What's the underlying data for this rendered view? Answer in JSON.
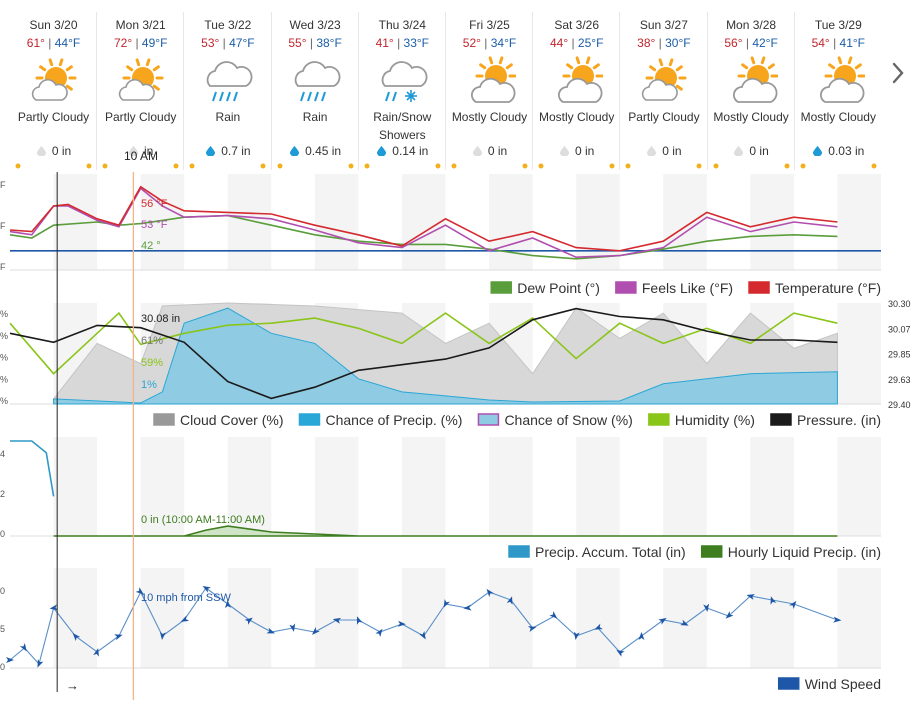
{
  "days": [
    {
      "name": "Sun 3/20",
      "hi": "61°",
      "lo": "44°F",
      "cond": "Partly Cloudy",
      "icon": "partly-cloudy-icon",
      "precip": "0 in"
    },
    {
      "name": "Mon 3/21",
      "hi": "72°",
      "lo": "49°F",
      "cond": "Partly Cloudy",
      "icon": "partly-cloudy-icon",
      "precip": "in"
    },
    {
      "name": "Tue 3/22",
      "hi": "53°",
      "lo": "47°F",
      "cond": "Rain",
      "icon": "rain-icon",
      "precip": "0.7 in"
    },
    {
      "name": "Wed 3/23",
      "hi": "55°",
      "lo": "38°F",
      "cond": "Rain",
      "icon": "rain-icon",
      "precip": "0.45 in"
    },
    {
      "name": "Thu 3/24",
      "hi": "41°",
      "lo": "33°F",
      "cond": "Rain/Snow Showers",
      "icon": "rain-snow-icon",
      "precip": "0.14 in"
    },
    {
      "name": "Fri 3/25",
      "hi": "52°",
      "lo": "34°F",
      "cond": "Mostly Cloudy",
      "icon": "mostly-cloudy-icon",
      "precip": "0 in"
    },
    {
      "name": "Sat 3/26",
      "hi": "44°",
      "lo": "25°F",
      "cond": "Mostly Cloudy",
      "icon": "mostly-cloudy-icon",
      "precip": "0 in"
    },
    {
      "name": "Sun 3/27",
      "hi": "38°",
      "lo": "30°F",
      "cond": "Partly Cloudy",
      "icon": "partly-cloudy-icon",
      "precip": "0 in"
    },
    {
      "name": "Mon 3/28",
      "hi": "56°",
      "lo": "42°F",
      "cond": "Mostly Cloudy",
      "icon": "mostly-cloudy-icon",
      "precip": "0 in"
    },
    {
      "name": "Tue 3/29",
      "hi": "54°",
      "lo": "41°F",
      "cond": "Mostly Cloudy",
      "icon": "mostly-cloudy-icon",
      "precip": "0.03 in"
    }
  ],
  "hover_time": "10 AM",
  "colors": {
    "temp": "#d42a2f",
    "feels": "#b04fb0",
    "dew": "#5a9e3c",
    "freeze": "#1f57a8",
    "cloud": "#c8c8c8",
    "precip": "#2aa7d6",
    "humidity": "#8ac51a",
    "pressure": "#1a1a1a",
    "accum": "#2f98c8",
    "hourly": "#3e7d20",
    "wind": "#1f57a8",
    "cursor": "#f2b38a"
  },
  "chart_data": [
    {
      "type": "line",
      "id": "temperature",
      "x_unit": "hours from Sun 3/20 00:00",
      "series": [
        {
          "name": "Temperature (°F)",
          "color": "#d42a2f",
          "points": [
            [
              0,
              45
            ],
            [
              6,
              44
            ],
            [
              12,
              60
            ],
            [
              16,
              61
            ],
            [
              24,
              52
            ],
            [
              30,
              48
            ],
            [
              36,
              72
            ],
            [
              42,
              63
            ],
            [
              48,
              57
            ],
            [
              60,
              56
            ],
            [
              72,
              55
            ],
            [
              84,
              48
            ],
            [
              96,
              42
            ],
            [
              108,
              35
            ],
            [
              120,
              52
            ],
            [
              132,
              38
            ],
            [
              144,
              44
            ],
            [
              156,
              34
            ],
            [
              168,
              32
            ],
            [
              180,
              38
            ],
            [
              192,
              56
            ],
            [
              204,
              47
            ],
            [
              216,
              53
            ],
            [
              228,
              50
            ]
          ]
        },
        {
          "name": "Feels Like (°F)",
          "color": "#b04fb0",
          "points": [
            [
              0,
              44
            ],
            [
              6,
              42
            ],
            [
              12,
              60
            ],
            [
              16,
              60
            ],
            [
              24,
              51
            ],
            [
              30,
              47
            ],
            [
              36,
              71
            ],
            [
              42,
              60
            ],
            [
              48,
              53
            ],
            [
              60,
              54
            ],
            [
              72,
              52
            ],
            [
              84,
              45
            ],
            [
              96,
              37
            ],
            [
              108,
              34
            ],
            [
              120,
              48
            ],
            [
              132,
              32
            ],
            [
              144,
              40
            ],
            [
              156,
              28
            ],
            [
              168,
              29
            ],
            [
              180,
              34
            ],
            [
              192,
              53
            ],
            [
              204,
              44
            ],
            [
              216,
              50
            ],
            [
              228,
              47
            ]
          ]
        },
        {
          "name": "Dew Point (°)",
          "color": "#5a9e3c",
          "points": [
            [
              0,
              42
            ],
            [
              6,
              40
            ],
            [
              12,
              48
            ],
            [
              24,
              50
            ],
            [
              30,
              48
            ],
            [
              36,
              49
            ],
            [
              42,
              51
            ],
            [
              48,
              53
            ],
            [
              60,
              54
            ],
            [
              72,
              48
            ],
            [
              84,
              42
            ],
            [
              96,
              38
            ],
            [
              108,
              36
            ],
            [
              120,
              36
            ],
            [
              132,
              33
            ],
            [
              144,
              29
            ],
            [
              156,
              27
            ],
            [
              168,
              29
            ],
            [
              180,
              33
            ],
            [
              192,
              38
            ],
            [
              204,
              41
            ],
            [
              216,
              42
            ],
            [
              228,
              41
            ]
          ]
        }
      ],
      "freezing_line": 32,
      "hover_labels": [
        "56 °F",
        "53 °F",
        "42 °"
      ]
    },
    {
      "type": "area",
      "id": "sky",
      "series": [
        {
          "name": "Cloud Cover (%)",
          "color": "#c8c8c8",
          "points": [
            [
              12,
              5
            ],
            [
              24,
              60
            ],
            [
              36,
              40
            ],
            [
              42,
              97
            ],
            [
              60,
              100
            ],
            [
              84,
              97
            ],
            [
              108,
              90
            ],
            [
              120,
              60
            ],
            [
              132,
              80
            ],
            [
              144,
              30
            ],
            [
              156,
              95
            ],
            [
              168,
              65
            ],
            [
              180,
              90
            ],
            [
              192,
              40
            ],
            [
              204,
              90
            ],
            [
              216,
              55
            ],
            [
              228,
              70
            ]
          ]
        },
        {
          "name": "Chance of Precip. (%)",
          "color": "#2aa7d6",
          "points": [
            [
              12,
              5
            ],
            [
              36,
              1
            ],
            [
              42,
              12
            ],
            [
              48,
              80
            ],
            [
              60,
              95
            ],
            [
              72,
              70
            ],
            [
              84,
              60
            ],
            [
              96,
              25
            ],
            [
              108,
              12
            ],
            [
              120,
              8
            ],
            [
              132,
              4
            ],
            [
              144,
              2
            ],
            [
              168,
              3
            ],
            [
              180,
              20
            ],
            [
              192,
              25
            ],
            [
              204,
              30
            ],
            [
              228,
              32
            ]
          ]
        },
        {
          "name": "Chance of Snow (%)",
          "color": "#c77fc0",
          "points": []
        },
        {
          "name": "Humidity (%)",
          "color": "#8ac51a",
          "points": [
            [
              0,
              80
            ],
            [
              12,
              30
            ],
            [
              24,
              70
            ],
            [
              30,
              90
            ],
            [
              36,
              59
            ],
            [
              48,
              70
            ],
            [
              60,
              78
            ],
            [
              72,
              80
            ],
            [
              84,
              85
            ],
            [
              96,
              75
            ],
            [
              108,
              60
            ],
            [
              120,
              90
            ],
            [
              132,
              60
            ],
            [
              144,
              85
            ],
            [
              156,
              45
            ],
            [
              168,
              80
            ],
            [
              180,
              60
            ],
            [
              192,
              75
            ],
            [
              204,
              60
            ],
            [
              216,
              90
            ],
            [
              228,
              80
            ]
          ]
        },
        {
          "name": "Pressure. (in)",
          "color": "#1a1a1a",
          "points": [
            [
              0,
              30.03
            ],
            [
              12,
              29.95
            ],
            [
              24,
              30.1
            ],
            [
              36,
              30.08
            ],
            [
              48,
              29.95
            ],
            [
              60,
              29.6
            ],
            [
              72,
              29.45
            ],
            [
              84,
              29.55
            ],
            [
              96,
              29.7
            ],
            [
              108,
              29.75
            ],
            [
              120,
              29.8
            ],
            [
              132,
              29.9
            ],
            [
              144,
              30.15
            ],
            [
              156,
              30.25
            ],
            [
              168,
              30.18
            ],
            [
              180,
              30.15
            ],
            [
              192,
              30.05
            ],
            [
              204,
              29.97
            ],
            [
              216,
              29.97
            ],
            [
              228,
              29.95
            ]
          ]
        }
      ],
      "ylabel_right": [
        "30.30",
        "30.07",
        "29.85",
        "29.63",
        "29.40"
      ],
      "hover_labels": [
        "30.08 in",
        "61%",
        "59%",
        "1%"
      ]
    },
    {
      "type": "area",
      "id": "precip",
      "series": [
        {
          "name": "Precip. Accum. Total (in)",
          "color": "#2f98c8",
          "points": [
            [
              0,
              0.48
            ],
            [
              6,
              0.48
            ],
            [
              10,
              0.42
            ],
            [
              12,
              0.2
            ]
          ]
        },
        {
          "name": "Hourly Liquid Precip. (in)",
          "color": "#3e7d20",
          "points": [
            [
              12,
              0
            ],
            [
              48,
              0
            ],
            [
              54,
              0.03
            ],
            [
              60,
              0.05
            ],
            [
              72,
              0.02
            ],
            [
              84,
              0.01
            ],
            [
              96,
              0
            ],
            [
              228,
              0
            ]
          ]
        }
      ],
      "hover_label": "0 in (10:00 AM-11:00 AM)"
    },
    {
      "type": "line",
      "id": "wind",
      "series": [
        {
          "name": "Wind Speed",
          "color": "#1f57a8",
          "points": [
            [
              0,
              2
            ],
            [
              4,
              5
            ],
            [
              8,
              1
            ],
            [
              12,
              15
            ],
            [
              18,
              8
            ],
            [
              24,
              4
            ],
            [
              30,
              8
            ],
            [
              36,
              19
            ],
            [
              42,
              8
            ],
            [
              48,
              12
            ],
            [
              54,
              20
            ],
            [
              60,
              16
            ],
            [
              66,
              12
            ],
            [
              72,
              9
            ],
            [
              78,
              10
            ],
            [
              84,
              9
            ],
            [
              90,
              12
            ],
            [
              96,
              12
            ],
            [
              102,
              9
            ],
            [
              108,
              11
            ],
            [
              114,
              8
            ],
            [
              120,
              16
            ],
            [
              126,
              15
            ],
            [
              132,
              19
            ],
            [
              138,
              17
            ],
            [
              144,
              10
            ],
            [
              150,
              13
            ],
            [
              156,
              8
            ],
            [
              162,
              10
            ],
            [
              168,
              4
            ],
            [
              174,
              8
            ],
            [
              180,
              12
            ],
            [
              186,
              11
            ],
            [
              192,
              15
            ],
            [
              198,
              13
            ],
            [
              204,
              18
            ],
            [
              210,
              17
            ],
            [
              216,
              16
            ],
            [
              228,
              12
            ]
          ]
        }
      ],
      "hover_label": "10 mph from SSW"
    }
  ],
  "legends": {
    "temperature": [
      "Dew Point (°)",
      "Feels Like (°F)",
      "Temperature (°F)"
    ],
    "sky": [
      "Cloud Cover (%)",
      "Chance of Precip. (%)",
      "Chance of Snow (%)",
      "Humidity (%)",
      "Pressure. (in)"
    ],
    "precip": [
      "Precip. Accum. Total (in)",
      "Hourly Liquid Precip. (in)"
    ],
    "wind": [
      "Wind Speed"
    ]
  },
  "arrow": "→"
}
